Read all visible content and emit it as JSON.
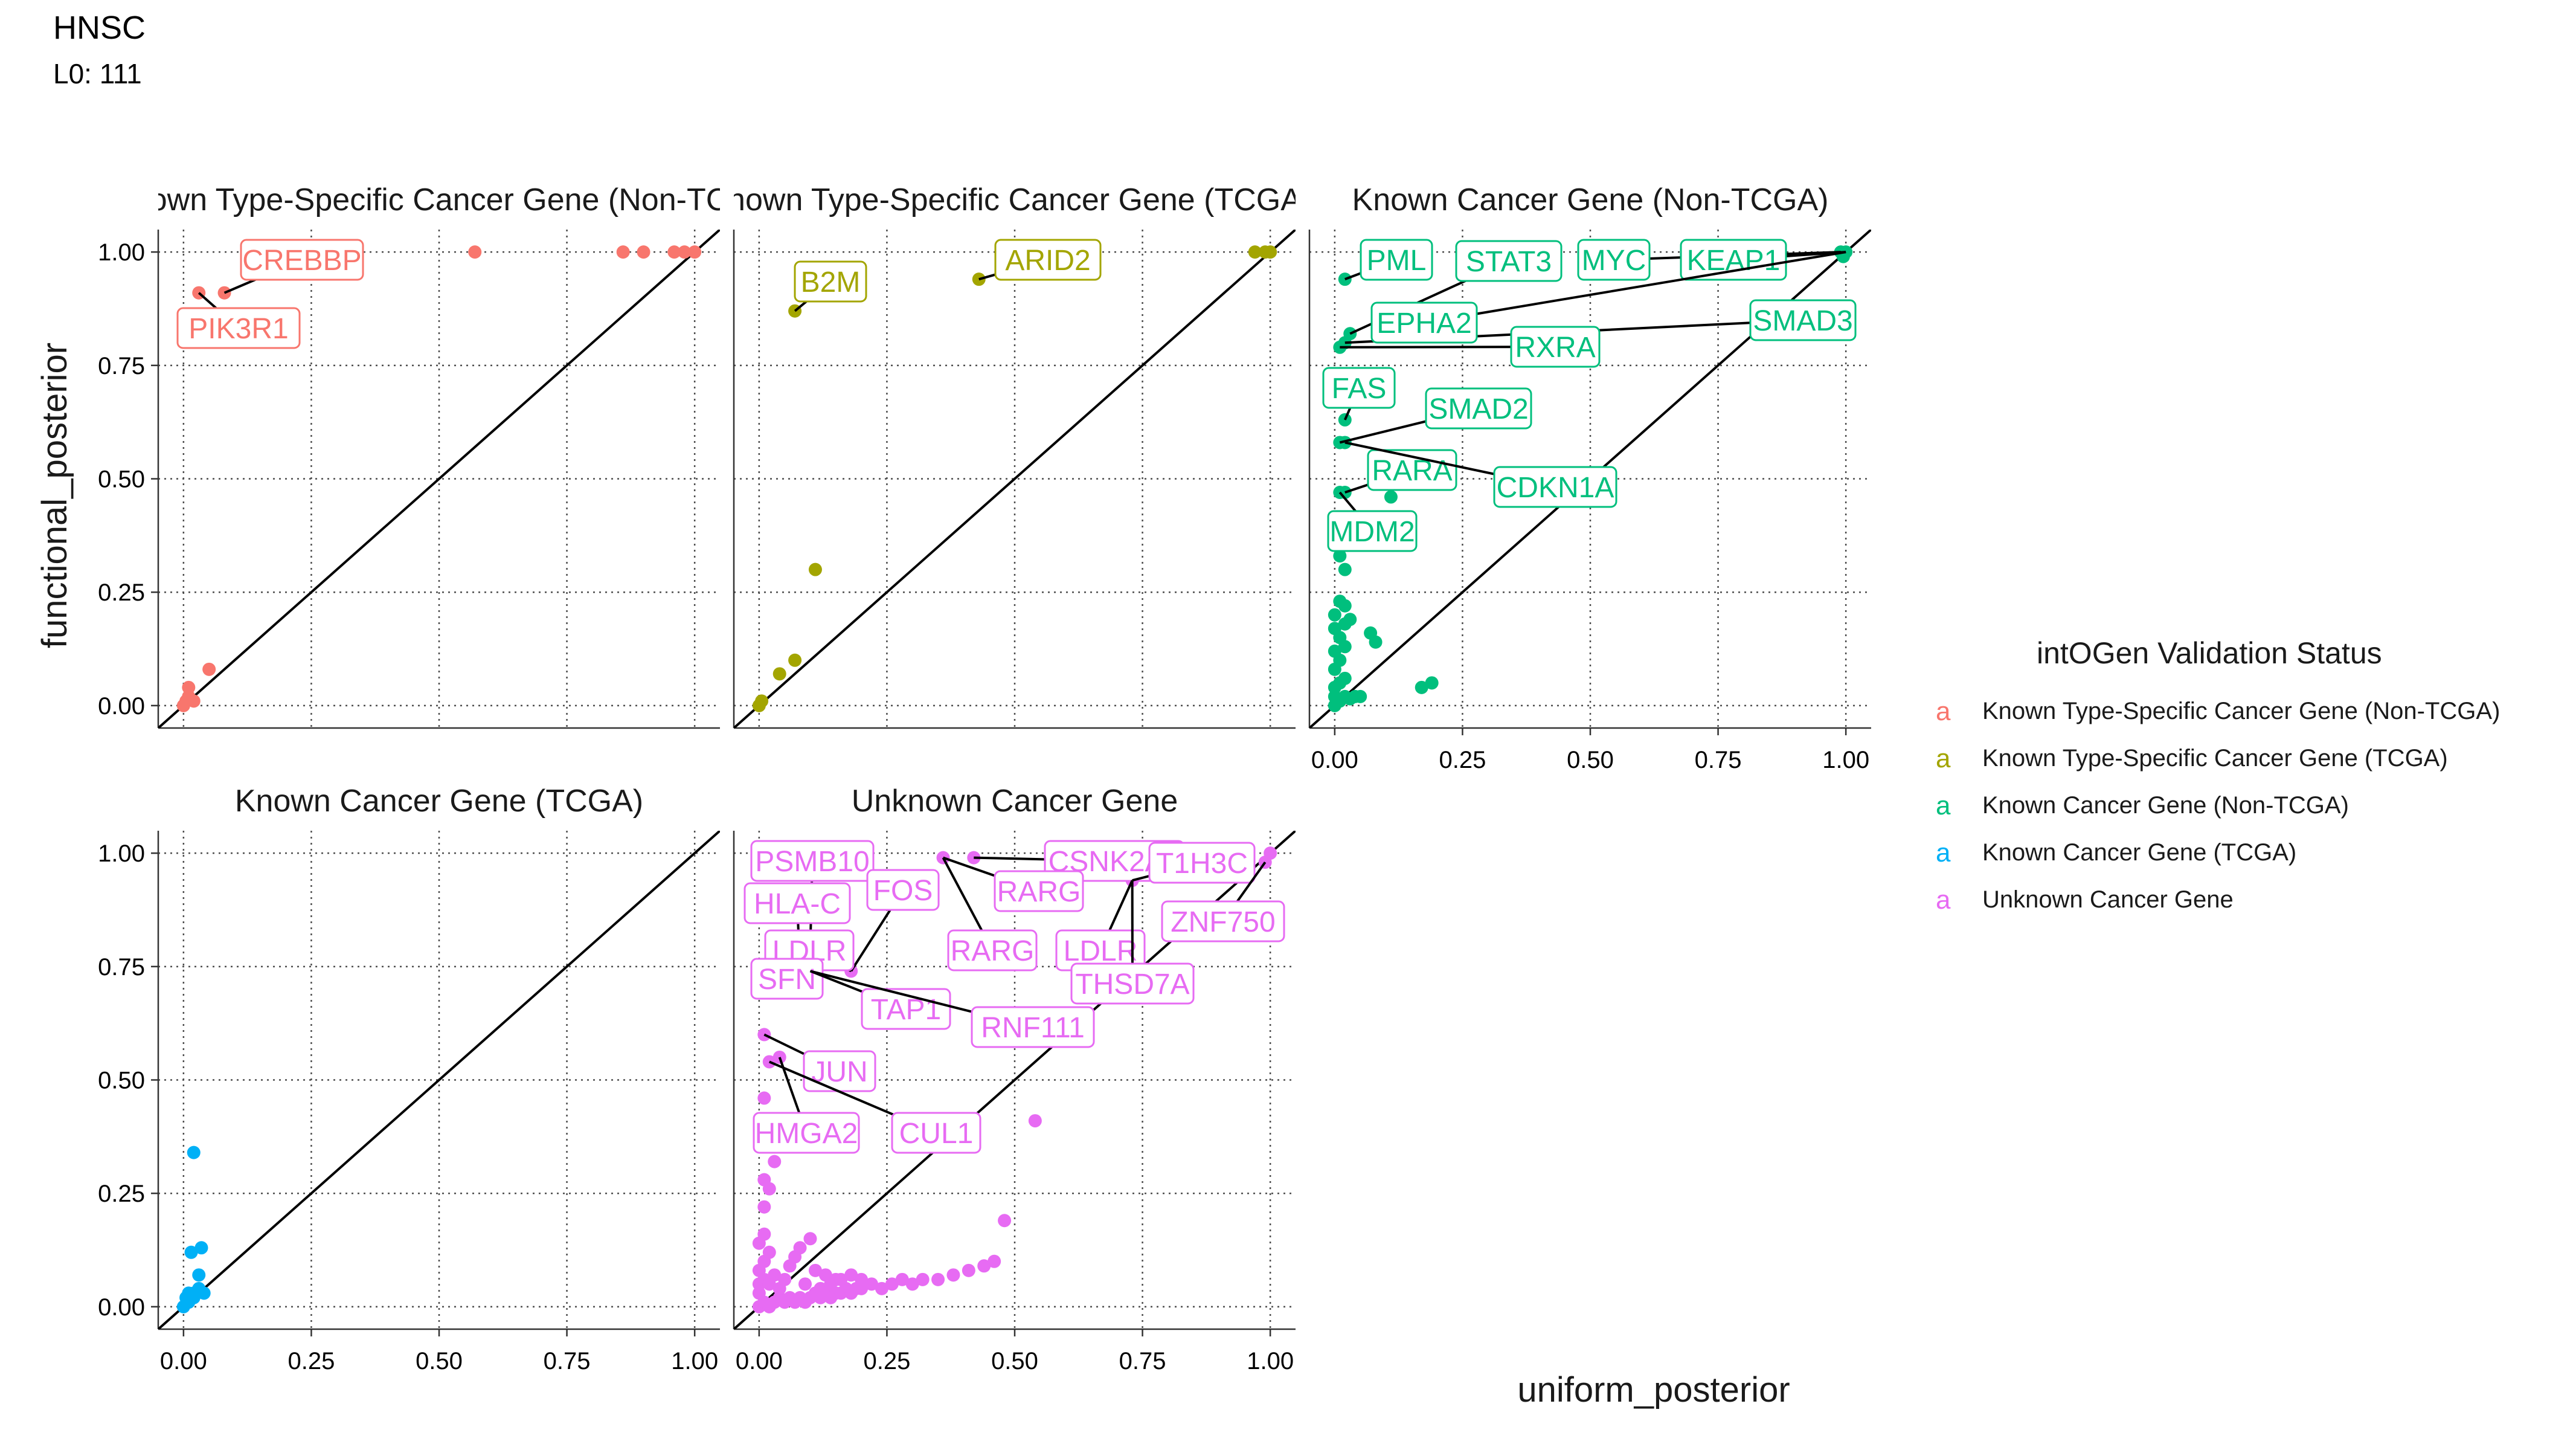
{
  "figure": {
    "title": "HNSC",
    "subtitle": "L0: 111"
  },
  "chart_data": {
    "type": "scatter",
    "xlabel": "uniform_posterior",
    "ylabel": "functional_posterior",
    "xlim": [
      0,
      1
    ],
    "ylim": [
      0,
      1
    ],
    "ticks": [
      0,
      0.25,
      0.5,
      0.75,
      1.0
    ],
    "tick_labels": [
      "0.00",
      "0.25",
      "0.50",
      "0.75",
      "1.00"
    ],
    "grid": true,
    "reference_line": "y = x",
    "legend": {
      "title": "intOGen Validation Status",
      "position": "right",
      "key_glyph": "a",
      "entries": [
        {
          "label": "Known Type-Specific Cancer Gene (Non-TCGA)",
          "color": "#F8766D"
        },
        {
          "label": "Known Type-Specific Cancer Gene (TCGA)",
          "color": "#A3A500"
        },
        {
          "label": "Known Cancer Gene (Non-TCGA)",
          "color": "#00BF7D"
        },
        {
          "label": "Known Cancer Gene (TCGA)",
          "color": "#00B0F6"
        },
        {
          "label": "Unknown Cancer Gene",
          "color": "#E76BF3"
        }
      ]
    },
    "panels": [
      {
        "title": "Known Type-Specific Cancer Gene (Non-TCGA)",
        "display_title": "own Type-Specific Cancer Gene (Non-TC",
        "color": "#F8766D",
        "show_y_axis": true,
        "show_x_axis": false,
        "points": [
          [
            0.0,
            0.0
          ],
          [
            0.005,
            0.01
          ],
          [
            0.01,
            0.02
          ],
          [
            0.01,
            0.04
          ],
          [
            0.02,
            0.01
          ],
          [
            0.05,
            0.08
          ],
          [
            0.03,
            0.91
          ],
          [
            0.08,
            0.91
          ],
          [
            0.57,
            1.0
          ],
          [
            0.86,
            1.0
          ],
          [
            0.9,
            1.0
          ],
          [
            0.96,
            1.0
          ],
          [
            0.98,
            1.0
          ],
          [
            1.0,
            1.0
          ]
        ],
        "labels": [
          {
            "text": "CREBBP",
            "x": 0.08,
            "y": 0.91
          },
          {
            "text": "PIK3R1",
            "x": 0.03,
            "y": 0.91
          }
        ]
      },
      {
        "title": "Known Type-Specific Cancer Gene (TCGA)",
        "display_title": "nown Type-Specific Cancer Gene (TCGA",
        "color": "#A3A500",
        "show_y_axis": false,
        "show_x_axis": false,
        "points": [
          [
            0.0,
            0.0
          ],
          [
            0.005,
            0.01
          ],
          [
            0.04,
            0.07
          ],
          [
            0.07,
            0.1
          ],
          [
            0.11,
            0.3
          ],
          [
            0.07,
            0.87
          ],
          [
            0.43,
            0.94
          ],
          [
            0.97,
            1.0
          ],
          [
            0.99,
            1.0
          ],
          [
            1.0,
            1.0
          ]
        ],
        "labels": [
          {
            "text": "B2M",
            "x": 0.07,
            "y": 0.87
          },
          {
            "text": "ARID2",
            "x": 0.43,
            "y": 0.94
          }
        ]
      },
      {
        "title": "Known Cancer Gene (Non-TCGA)",
        "display_title": "Known Cancer Gene (Non-TCGA)",
        "color": "#00BF7D",
        "show_y_axis": false,
        "show_x_axis": true,
        "points": [
          [
            0.0,
            0.0
          ],
          [
            0.01,
            0.01
          ],
          [
            0.0,
            0.02
          ],
          [
            0.02,
            0.02
          ],
          [
            0.03,
            0.015
          ],
          [
            0.04,
            0.02
          ],
          [
            0.05,
            0.02
          ],
          [
            0.0,
            0.04
          ],
          [
            0.01,
            0.05
          ],
          [
            0.02,
            0.06
          ],
          [
            0.0,
            0.08
          ],
          [
            0.01,
            0.1
          ],
          [
            0.0,
            0.12
          ],
          [
            0.02,
            0.13
          ],
          [
            0.01,
            0.15
          ],
          [
            0.0,
            0.17
          ],
          [
            0.02,
            0.18
          ],
          [
            0.03,
            0.19
          ],
          [
            0.0,
            0.2
          ],
          [
            0.02,
            0.22
          ],
          [
            0.01,
            0.23
          ],
          [
            0.07,
            0.16
          ],
          [
            0.08,
            0.14
          ],
          [
            0.17,
            0.04
          ],
          [
            0.19,
            0.05
          ],
          [
            0.01,
            0.33
          ],
          [
            0.02,
            0.3
          ],
          [
            0.01,
            0.47
          ],
          [
            0.02,
            0.47
          ],
          [
            0.11,
            0.46
          ],
          [
            0.01,
            0.58
          ],
          [
            0.02,
            0.58
          ],
          [
            0.02,
            0.63
          ],
          [
            0.01,
            0.79
          ],
          [
            0.02,
            0.8
          ],
          [
            0.03,
            0.82
          ],
          [
            0.02,
            0.94
          ],
          [
            0.99,
            1.0
          ],
          [
            1.0,
            1.0
          ],
          [
            0.995,
            0.99
          ]
        ],
        "labels": [
          {
            "text": "PML",
            "x": 0.02,
            "y": 0.94
          },
          {
            "text": "STAT3",
            "x": 0.03,
            "y": 0.82
          },
          {
            "text": "MYC",
            "x": 0.99,
            "y": 1.0
          },
          {
            "text": "KEAP1",
            "x": 1.0,
            "y": 1.0
          },
          {
            "text": "SMAD3",
            "x": 0.02,
            "y": 0.8
          },
          {
            "text": "EPHA2",
            "x": 1.0,
            "y": 1.0
          },
          {
            "text": "RXRA",
            "x": 0.01,
            "y": 0.79
          },
          {
            "text": "FAS",
            "x": 0.02,
            "y": 0.63
          },
          {
            "text": "SMAD2",
            "x": 0.01,
            "y": 0.58
          },
          {
            "text": "RARA",
            "x": 0.02,
            "y": 0.47
          },
          {
            "text": "CDKN1A",
            "x": 0.02,
            "y": 0.58
          },
          {
            "text": "MDM2",
            "x": 0.01,
            "y": 0.47
          }
        ]
      },
      {
        "title": "Known Cancer Gene (TCGA)",
        "display_title": "Known Cancer Gene (TCGA)",
        "color": "#00B0F6",
        "show_y_axis": true,
        "show_x_axis": true,
        "points": [
          [
            0.0,
            0.0
          ],
          [
            0.01,
            0.01
          ],
          [
            0.005,
            0.02
          ],
          [
            0.01,
            0.03
          ],
          [
            0.02,
            0.03
          ],
          [
            0.03,
            0.04
          ],
          [
            0.04,
            0.03
          ],
          [
            0.03,
            0.07
          ],
          [
            0.02,
            0.02
          ],
          [
            0.015,
            0.12
          ],
          [
            0.035,
            0.13
          ],
          [
            0.02,
            0.34
          ]
        ],
        "labels": []
      },
      {
        "title": "Unknown Cancer Gene",
        "display_title": "Unknown Cancer Gene",
        "color": "#E76BF3",
        "show_y_axis": false,
        "show_x_axis": true,
        "points": [
          [
            0.0,
            0.0
          ],
          [
            0.01,
            0.01
          ],
          [
            0.02,
            0.0
          ],
          [
            0.03,
            0.01
          ],
          [
            0.04,
            0.02
          ],
          [
            0.05,
            0.01
          ],
          [
            0.06,
            0.02
          ],
          [
            0.07,
            0.01
          ],
          [
            0.08,
            0.02
          ],
          [
            0.09,
            0.01
          ],
          [
            0.1,
            0.02
          ],
          [
            0.11,
            0.03
          ],
          [
            0.12,
            0.02
          ],
          [
            0.13,
            0.03
          ],
          [
            0.14,
            0.02
          ],
          [
            0.15,
            0.03
          ],
          [
            0.16,
            0.03
          ],
          [
            0.17,
            0.04
          ],
          [
            0.18,
            0.03
          ],
          [
            0.19,
            0.04
          ],
          [
            0.2,
            0.04
          ],
          [
            0.22,
            0.05
          ],
          [
            0.24,
            0.04
          ],
          [
            0.26,
            0.05
          ],
          [
            0.28,
            0.06
          ],
          [
            0.3,
            0.05
          ],
          [
            0.32,
            0.06
          ],
          [
            0.35,
            0.06
          ],
          [
            0.38,
            0.07
          ],
          [
            0.41,
            0.08
          ],
          [
            0.44,
            0.09
          ],
          [
            0.46,
            0.1
          ],
          [
            0.48,
            0.19
          ],
          [
            0.0,
            0.03
          ],
          [
            0.0,
            0.05
          ],
          [
            0.01,
            0.06
          ],
          [
            0.0,
            0.08
          ],
          [
            0.01,
            0.1
          ],
          [
            0.02,
            0.12
          ],
          [
            0.0,
            0.14
          ],
          [
            0.01,
            0.16
          ],
          [
            0.02,
            0.05
          ],
          [
            0.03,
            0.07
          ],
          [
            0.04,
            0.04
          ],
          [
            0.05,
            0.06
          ],
          [
            0.06,
            0.09
          ],
          [
            0.07,
            0.11
          ],
          [
            0.08,
            0.13
          ],
          [
            0.1,
            0.15
          ],
          [
            0.11,
            0.08
          ],
          [
            0.13,
            0.07
          ],
          [
            0.15,
            0.06
          ],
          [
            0.09,
            0.05
          ],
          [
            0.12,
            0.04
          ],
          [
            0.14,
            0.05
          ],
          [
            0.16,
            0.06
          ],
          [
            0.18,
            0.07
          ],
          [
            0.2,
            0.06
          ],
          [
            0.01,
            0.22
          ],
          [
            0.02,
            0.26
          ],
          [
            0.03,
            0.32
          ],
          [
            0.01,
            0.28
          ],
          [
            0.01,
            0.6
          ],
          [
            0.02,
            0.54
          ],
          [
            0.04,
            0.55
          ],
          [
            0.01,
            0.46
          ],
          [
            0.54,
            0.41
          ],
          [
            0.18,
            0.74
          ],
          [
            0.36,
            0.99
          ],
          [
            0.42,
            0.99
          ],
          [
            0.73,
            0.94
          ],
          [
            1.0,
            1.0
          ],
          [
            0.99,
            0.98
          ]
        ],
        "labels": [
          {
            "text": "PSMB10",
            "x": 0.1,
            "y": 0.79
          },
          {
            "text": "CSNK2A1",
            "x": 0.42,
            "y": 0.99
          },
          {
            "text": "HLA-C",
            "x": 0.08,
            "y": 0.74
          },
          {
            "text": "FOS",
            "x": 0.18,
            "y": 0.74
          },
          {
            "text": "RARG",
            "x": 0.36,
            "y": 0.99
          },
          {
            "text": "T1H3C",
            "x": 0.73,
            "y": 0.94
          },
          {
            "text": "ZNF750",
            "x": 0.99,
            "y": 0.98
          },
          {
            "text": "LDLR",
            "x": 0.18,
            "y": 0.74
          },
          {
            "text": "RARG",
            "x": 0.36,
            "y": 0.99
          },
          {
            "text": "LDLR",
            "x": 0.73,
            "y": 0.94
          },
          {
            "text": "SFN",
            "x": 0.1,
            "y": 0.74
          },
          {
            "text": "THSD7A",
            "x": 0.73,
            "y": 0.94
          },
          {
            "text": "TAP1",
            "x": 0.1,
            "y": 0.74
          },
          {
            "text": "RNF111",
            "x": 0.1,
            "y": 0.74
          },
          {
            "text": "JUN",
            "x": 0.01,
            "y": 0.6
          },
          {
            "text": "HMGA2",
            "x": 0.04,
            "y": 0.55
          },
          {
            "text": "CUL1",
            "x": 0.02,
            "y": 0.54
          }
        ]
      }
    ]
  }
}
